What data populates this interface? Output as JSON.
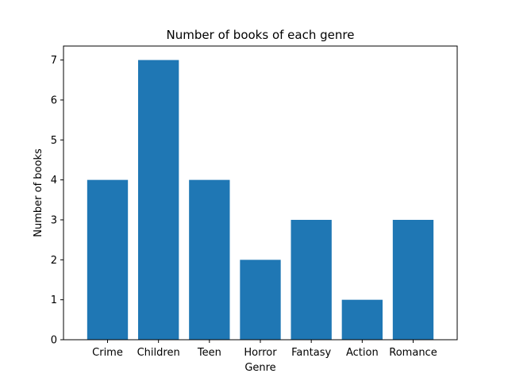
{
  "chart_data": {
    "type": "bar",
    "title": "Number of books of each genre",
    "xlabel": "Genre",
    "ylabel": "Number of books",
    "categories": [
      "Crime",
      "Children",
      "Teen",
      "Horror",
      "Fantasy",
      "Action",
      "Romance"
    ],
    "values": [
      4,
      7,
      4,
      2,
      3,
      1,
      3
    ],
    "ylim": [
      0,
      7.35
    ],
    "yticks": [
      "0",
      "1",
      "2",
      "3",
      "4",
      "5",
      "6",
      "7"
    ],
    "grid": false,
    "legend": "none",
    "bar_color": "#1f77b4"
  }
}
